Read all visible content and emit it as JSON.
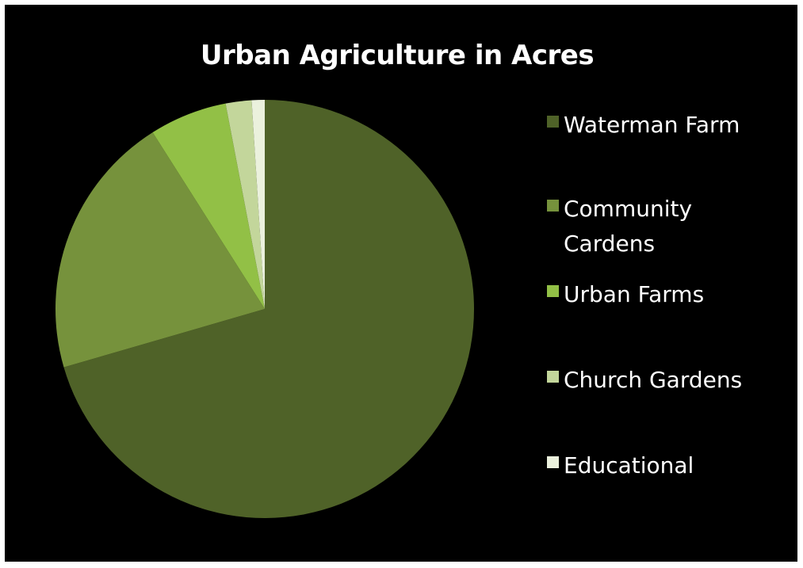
{
  "chart_data": {
    "type": "pie",
    "title": "Urban Agriculture in Acres",
    "categories": [
      "Waterman Farm",
      "Community Cardens",
      "Urban Farms",
      "Church Gardens",
      "Educational"
    ],
    "values": [
      70.5,
      20.5,
      6.0,
      2.0,
      1.0
    ],
    "colors": [
      "#4f6228",
      "#76923c",
      "#92c046",
      "#c3d69b",
      "#ebf1dd"
    ],
    "legend_position": "right",
    "start_angle_deg": 0,
    "direction": "clockwise"
  }
}
